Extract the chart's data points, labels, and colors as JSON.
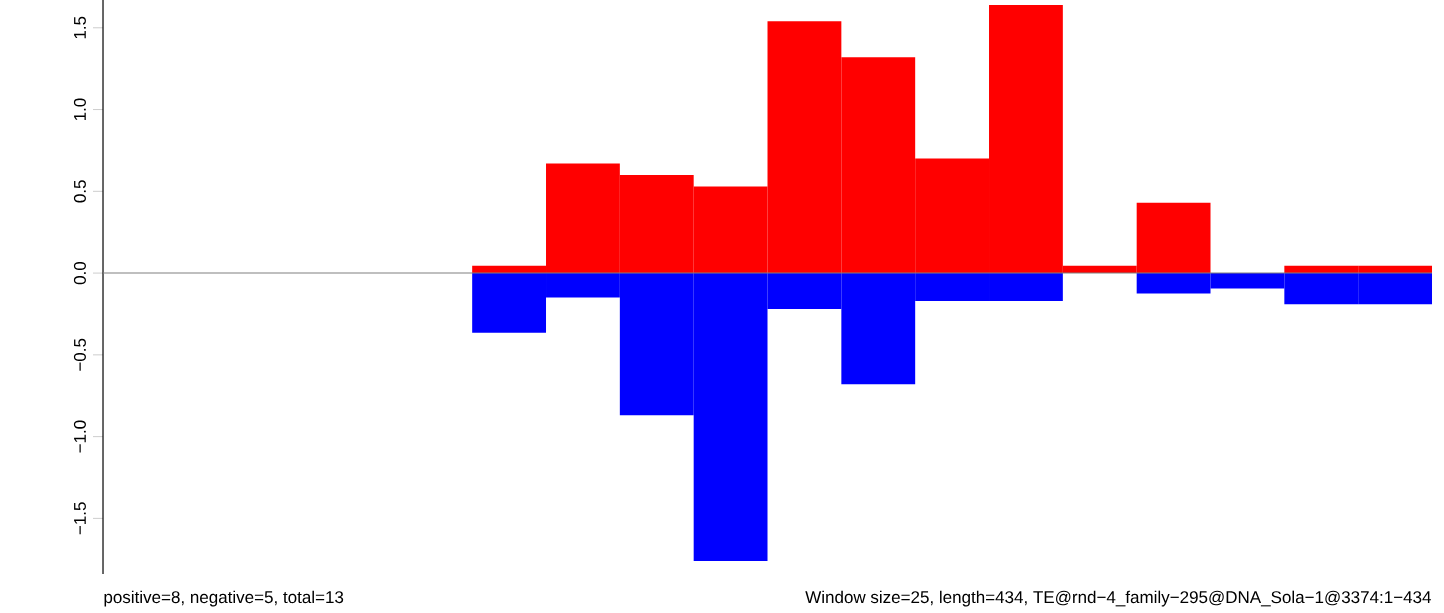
{
  "chart_data": {
    "type": "bar",
    "stacked": true,
    "categories": [
      null,
      null,
      null,
      null,
      null,
      null,
      null,
      null,
      null,
      null,
      null,
      null,
      null,
      null,
      null,
      null,
      null,
      null
    ],
    "series": [
      {
        "color": "#ff0000",
        "values": [
          0,
          0,
          0,
          0,
          0,
          0.045,
          0.67,
          0.6,
          0.53,
          1.54,
          1.32,
          0.7,
          1.64,
          0.045,
          0.43,
          0,
          0.045,
          0.045
        ]
      },
      {
        "color": "#0000ff",
        "values": [
          0,
          0,
          0,
          0,
          0,
          -0.365,
          -0.15,
          -0.87,
          -1.76,
          -0.22,
          -0.68,
          -0.17,
          -0.17,
          0,
          -0.125,
          -0.095,
          -0.19,
          -0.19
        ]
      }
    ],
    "ylim": [
      -1.84,
      1.67
    ],
    "yticks": [
      {
        "value": -1.5,
        "label": "−1.5"
      },
      {
        "value": -1.0,
        "label": "−1.0"
      },
      {
        "value": -0.5,
        "label": "−0.5"
      },
      {
        "value": 0,
        "label": "0.0"
      },
      {
        "value": 0.5,
        "label": "0.5"
      },
      {
        "value": 1.0,
        "label": "1.0"
      },
      {
        "value": 1.5,
        "label": "1.5"
      }
    ],
    "ref_lines": [
      {
        "axis": "y",
        "value": 0,
        "color": "#808080"
      }
    ],
    "tick_labels": "y",
    "annotations": [
      "positive=8, negative=5, total=13",
      "Window size=25, length=434, TE@rnd−4_family−295@DNA_Sola−1@3374:1−434"
    ]
  }
}
